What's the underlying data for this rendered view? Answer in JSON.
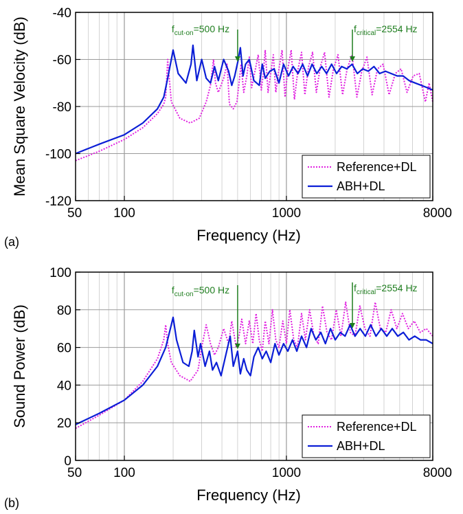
{
  "colors": {
    "reference": "#e020e0",
    "abh": "#0b1ed6",
    "annotation": "#1e7d1e",
    "grid": "#c8c8c8"
  },
  "chart_data": [
    {
      "type": "line",
      "panel_label": "(a)",
      "xlabel": "Frequency (Hz)",
      "ylabel": "Mean Square Velocity (dB)",
      "xscale": "log",
      "xlim": [
        50,
        8000
      ],
      "ylim": [
        -120,
        -40
      ],
      "xticks": [
        50,
        100,
        1000,
        8000
      ],
      "xtick_labels": [
        "50",
        "100",
        "1000",
        "8000"
      ],
      "yticks": [
        -120,
        -100,
        -80,
        -60,
        -40
      ],
      "ytick_labels": [
        "-120",
        "-100",
        "-80",
        "-60",
        "-40"
      ],
      "grid": true,
      "legend_position": "bottom-right",
      "annotations": [
        {
          "base": "f",
          "sub": "cut-on",
          "rest": "=500 Hz",
          "x": 500,
          "y": -61
        },
        {
          "base": "f",
          "sub": "critical",
          "rest": "=2554 Hz",
          "x": 2554,
          "y": -60
        }
      ],
      "series": [
        {
          "name": "Reference+DL",
          "style": "dotted",
          "x": [
            50,
            70,
            100,
            130,
            160,
            175,
            180,
            185,
            195,
            220,
            255,
            290,
            320,
            340,
            355,
            365,
            380,
            410,
            430,
            445,
            470,
            495,
            510,
            525,
            545,
            570,
            590,
            610,
            640,
            670,
            700,
            720,
            740,
            770,
            800,
            830,
            860,
            900,
            940,
            980,
            1020,
            1070,
            1120,
            1180,
            1240,
            1300,
            1370,
            1450,
            1530,
            1620,
            1720,
            1830,
            1950,
            2080,
            2220,
            2370,
            2540,
            2720,
            2920,
            3140,
            3380,
            3650,
            3950,
            4300,
            4700,
            5100,
            5550,
            6050,
            6600,
            7200,
            7600,
            8000
          ],
          "y": [
            -103,
            -99,
            -94,
            -89,
            -83,
            -79,
            -76,
            -60,
            -78,
            -85,
            -87,
            -85,
            -78,
            -71,
            -60,
            -70,
            -74,
            -68,
            -62,
            -79,
            -81,
            -78,
            -70,
            -62,
            -74,
            -67,
            -59,
            -72,
            -65,
            -58,
            -73,
            -66,
            -56,
            -74,
            -66,
            -58,
            -74,
            -64,
            -56,
            -76,
            -64,
            -56,
            -77,
            -64,
            -57,
            -75,
            -63,
            -57,
            -74,
            -63,
            -57,
            -76,
            -64,
            -58,
            -75,
            -64,
            -58,
            -76,
            -65,
            -59,
            -75,
            -64,
            -62,
            -75,
            -66,
            -64,
            -74,
            -67,
            -66,
            -78,
            -70,
            -78
          ]
        },
        {
          "name": "ABH+DL",
          "style": "solid",
          "x": [
            50,
            70,
            100,
            130,
            160,
            175,
            185,
            195,
            200,
            215,
            240,
            258,
            265,
            280,
            300,
            320,
            340,
            360,
            380,
            410,
            440,
            460,
            480,
            505,
            520,
            540,
            560,
            590,
            630,
            680,
            710,
            740,
            790,
            840,
            900,
            960,
            1030,
            1100,
            1180,
            1260,
            1350,
            1440,
            1540,
            1650,
            1770,
            1900,
            2040,
            2190,
            2360,
            2540,
            2740,
            2960,
            3200,
            3470,
            3760,
            4080,
            4430,
            4820,
            5250,
            5720,
            6230,
            6800,
            7400,
            8000
          ],
          "y": [
            -100,
            -96,
            -92,
            -87,
            -81,
            -76,
            -68,
            -60,
            -56,
            -66,
            -70,
            -62,
            -54,
            -69,
            -60,
            -68,
            -70,
            -63,
            -69,
            -60,
            -65,
            -71,
            -67,
            -60,
            -55,
            -67,
            -62,
            -60,
            -69,
            -71,
            -62,
            -68,
            -65,
            -64,
            -70,
            -62,
            -67,
            -63,
            -66,
            -62,
            -67,
            -62,
            -66,
            -63,
            -66,
            -62,
            -66,
            -63,
            -64,
            -62,
            -66,
            -64,
            -65,
            -63,
            -66,
            -65,
            -66,
            -67,
            -67,
            -69,
            -70,
            -71,
            -72,
            -73
          ]
        }
      ]
    },
    {
      "type": "line",
      "panel_label": "(b)",
      "xlabel": "Frequency (Hz)",
      "ylabel": "Sound Power (dB)",
      "xscale": "log",
      "xlim": [
        50,
        8000
      ],
      "ylim": [
        0,
        100
      ],
      "xticks": [
        50,
        100,
        1000,
        8000
      ],
      "xtick_labels": [
        "50",
        "100",
        "1000",
        "8000"
      ],
      "yticks": [
        0,
        20,
        40,
        60,
        80,
        100
      ],
      "ytick_labels": [
        "0",
        "20",
        "40",
        "60",
        "80",
        "100"
      ],
      "grid": true,
      "legend_position": "bottom-right",
      "annotations": [
        {
          "base": "f",
          "sub": "cut-on",
          "rest": "=500 Hz",
          "x": 500,
          "y": 57
        },
        {
          "base": "f",
          "sub": "critical",
          "rest": "=2554 Hz",
          "x": 2554,
          "y": 67
        }
      ],
      "series": [
        {
          "name": "Reference+DL",
          "style": "dotted",
          "x": [
            50,
            70,
            100,
            130,
            160,
            175,
            180,
            185,
            195,
            220,
            255,
            285,
            300,
            320,
            340,
            360,
            380,
            410,
            440,
            460,
            490,
            510,
            530,
            560,
            590,
            620,
            650,
            680,
            710,
            740,
            780,
            820,
            860,
            900,
            950,
            1000,
            1050,
            1110,
            1170,
            1240,
            1310,
            1390,
            1480,
            1570,
            1670,
            1780,
            1900,
            2030,
            2170,
            2320,
            2480,
            2650,
            2840,
            3050,
            3280,
            3530,
            3800,
            4100,
            4430,
            4800,
            5200,
            5650,
            6150,
            6700,
            7300,
            8000
          ],
          "y": [
            17,
            24,
            32,
            42,
            54,
            64,
            72,
            62,
            52,
            45,
            42,
            48,
            60,
            72,
            62,
            56,
            60,
            70,
            62,
            74,
            60,
            66,
            75,
            62,
            74,
            62,
            78,
            64,
            58,
            74,
            62,
            80,
            64,
            60,
            74,
            62,
            80,
            64,
            60,
            78,
            64,
            80,
            66,
            62,
            82,
            68,
            64,
            80,
            66,
            84,
            68,
            66,
            82,
            70,
            66,
            84,
            70,
            68,
            80,
            70,
            78,
            70,
            74,
            68,
            70,
            66
          ]
        },
        {
          "name": "ABH+DL",
          "style": "solid",
          "x": [
            50,
            70,
            100,
            130,
            160,
            180,
            195,
            200,
            210,
            230,
            250,
            262,
            270,
            285,
            295,
            315,
            335,
            350,
            370,
            395,
            420,
            450,
            470,
            500,
            520,
            545,
            570,
            600,
            630,
            670,
            710,
            750,
            800,
            850,
            900,
            960,
            1020,
            1090,
            1160,
            1240,
            1330,
            1420,
            1520,
            1630,
            1740,
            1870,
            2000,
            2150,
            2300,
            2470,
            2650,
            2850,
            3070,
            3310,
            3570,
            3850,
            4160,
            4500,
            4870,
            5270,
            5710,
            6190,
            6710,
            7280,
            8000
          ],
          "y": [
            19,
            25,
            32,
            40,
            50,
            60,
            72,
            76,
            64,
            52,
            50,
            58,
            69,
            55,
            62,
            50,
            58,
            48,
            52,
            45,
            55,
            66,
            50,
            58,
            46,
            54,
            48,
            45,
            55,
            60,
            54,
            58,
            52,
            62,
            56,
            62,
            58,
            64,
            58,
            66,
            60,
            70,
            64,
            68,
            62,
            70,
            64,
            68,
            66,
            72,
            66,
            70,
            66,
            72,
            66,
            70,
            66,
            70,
            66,
            68,
            64,
            66,
            64,
            64,
            62
          ]
        }
      ]
    }
  ]
}
